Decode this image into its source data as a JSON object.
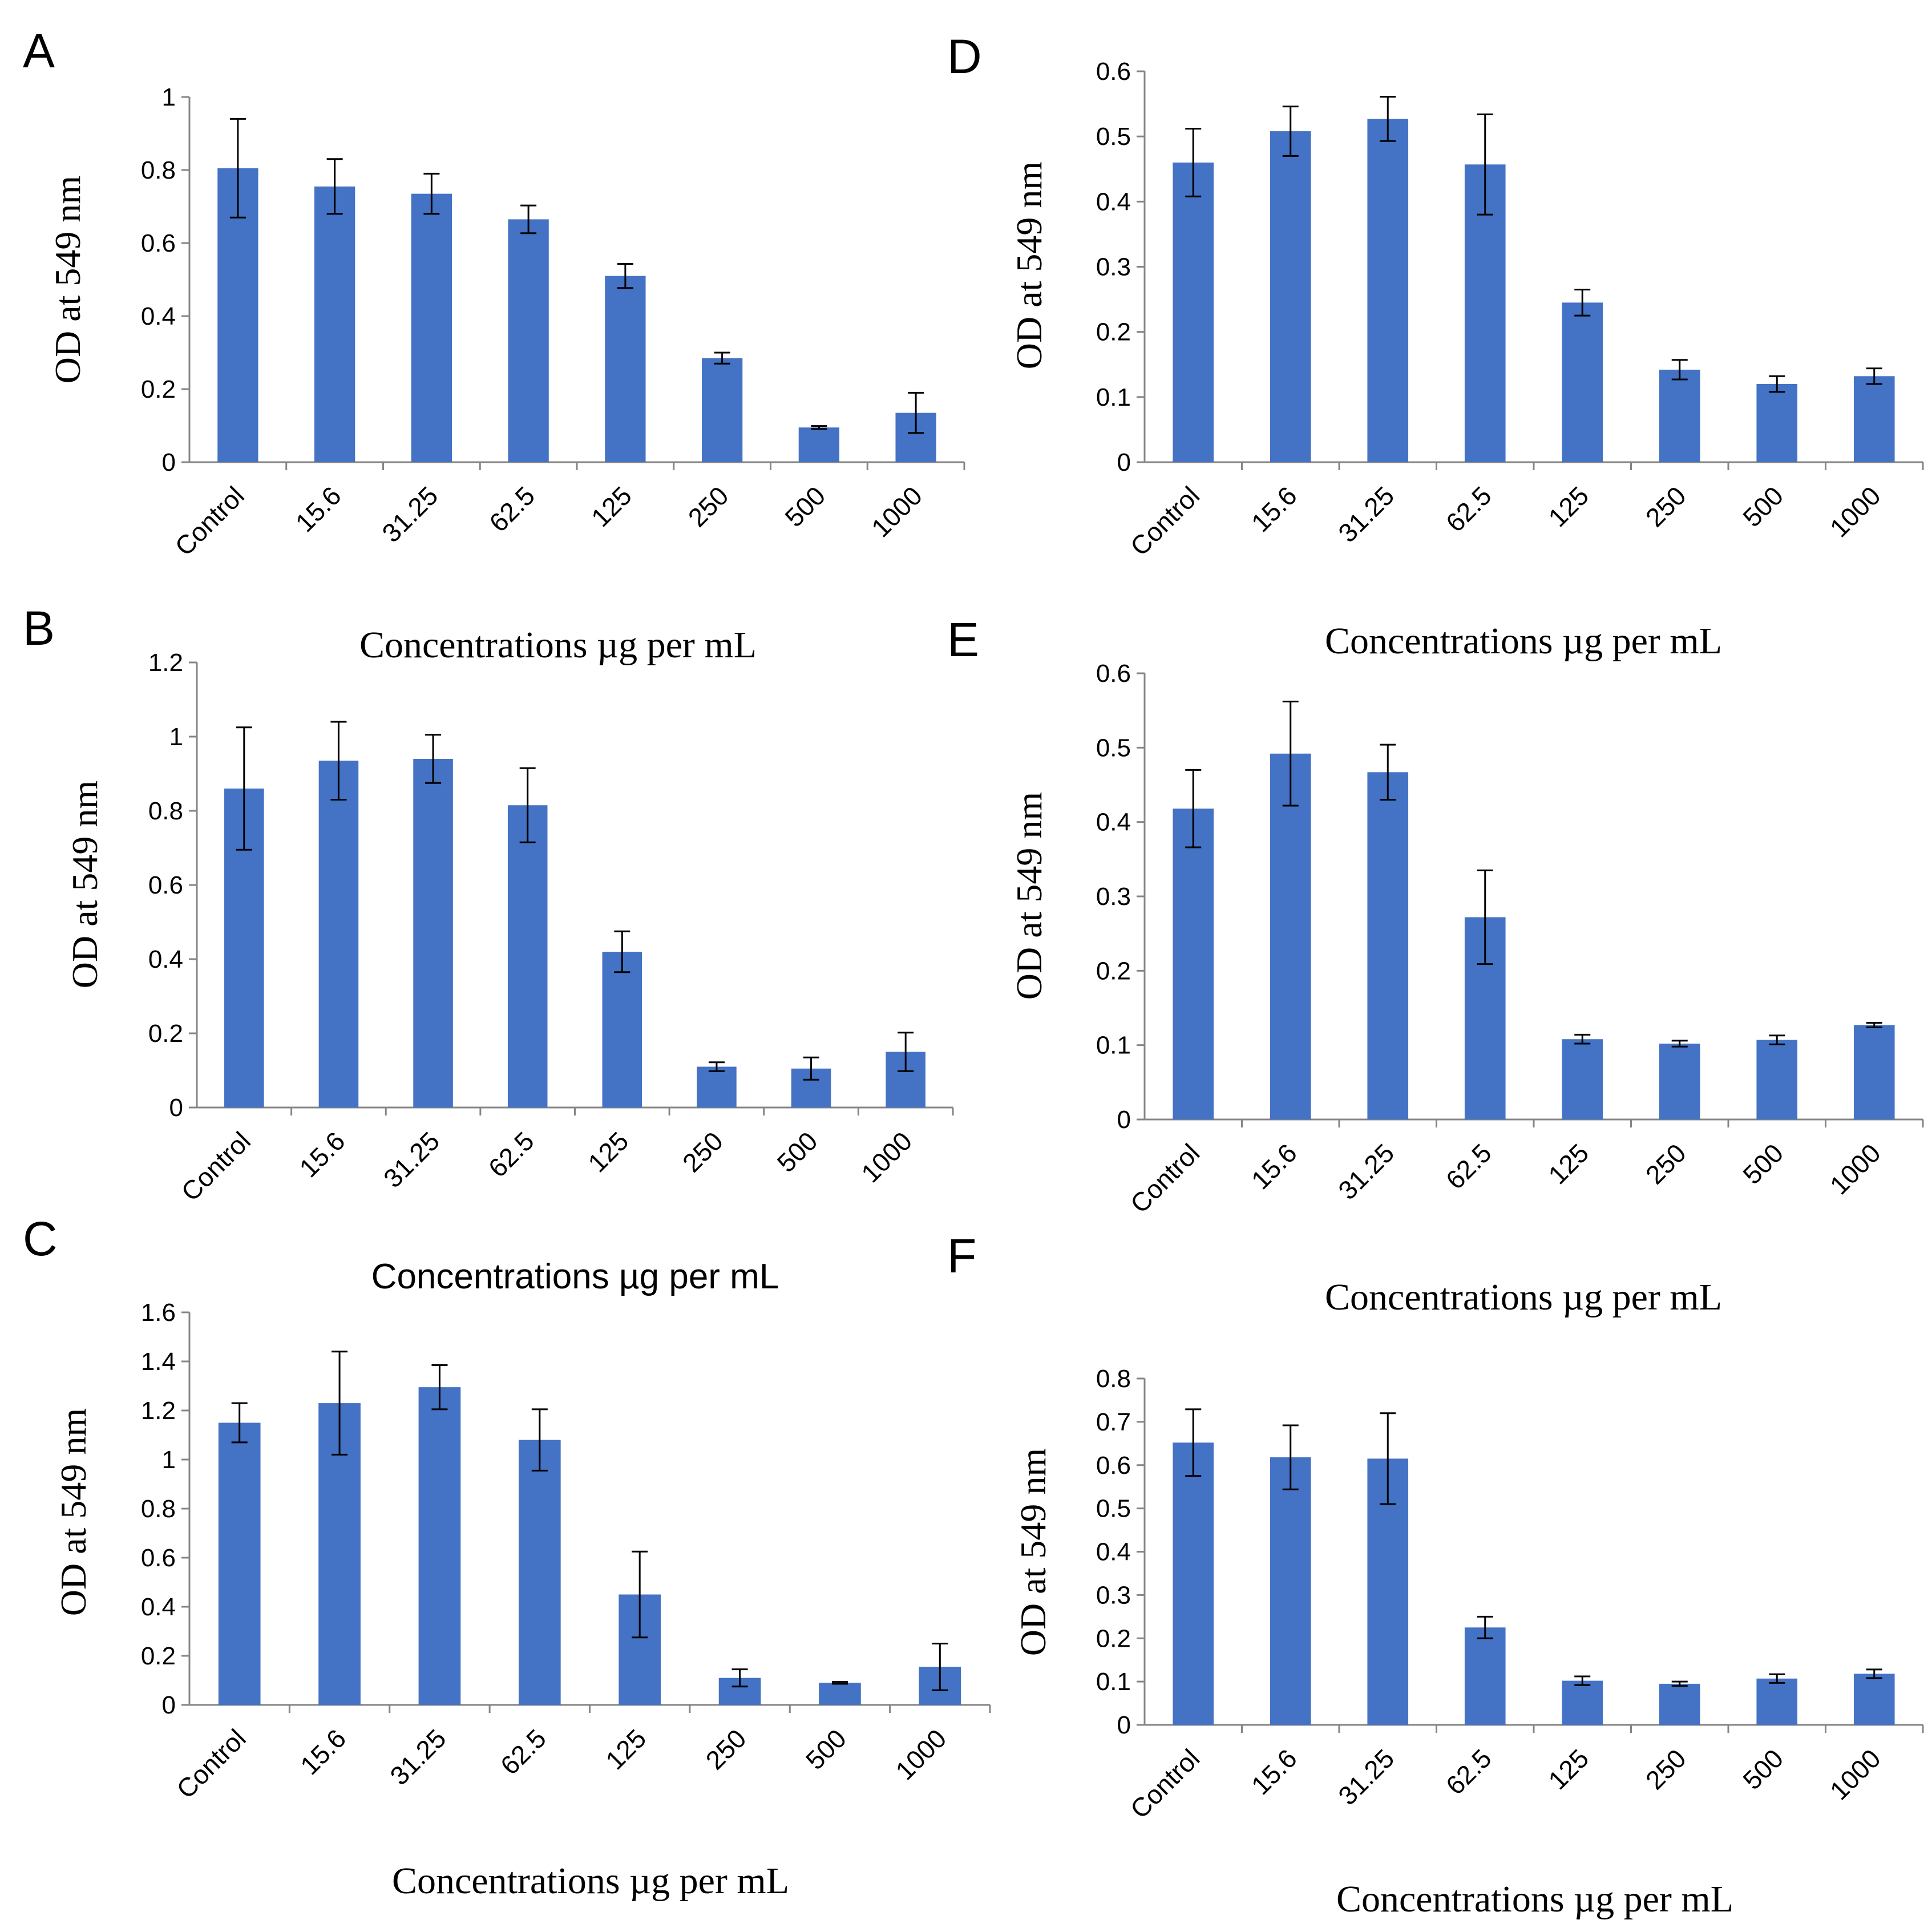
{
  "chart_data": [
    {
      "panel": "A",
      "type": "bar",
      "categories": [
        "Control",
        "15.6",
        "31.25",
        "62.5",
        "125",
        "250",
        "500",
        "1000"
      ],
      "values": [
        0.805,
        0.755,
        0.735,
        0.665,
        0.51,
        0.285,
        0.095,
        0.135
      ],
      "errors": [
        0.135,
        0.075,
        0.055,
        0.038,
        0.033,
        0.015,
        0.004,
        0.055
      ],
      "ylabel": "OD at 549 nm",
      "xlabel": "Concentrations µg per mL",
      "ylim": [
        0,
        1
      ],
      "yticks": [
        "0",
        "0.2",
        "0.4",
        "0.6",
        "0.8",
        "1"
      ],
      "color": "#4472C4"
    },
    {
      "panel": "B",
      "type": "bar",
      "categories": [
        "Control",
        "15.6",
        "31.25",
        "62.5",
        "125",
        "250",
        "500",
        "1000"
      ],
      "values": [
        0.86,
        0.935,
        0.94,
        0.815,
        0.42,
        0.11,
        0.105,
        0.15
      ],
      "errors": [
        0.165,
        0.105,
        0.065,
        0.1,
        0.055,
        0.012,
        0.03,
        0.052
      ],
      "ylabel": "OD at 549 nm",
      "xlabel": "Concentrations µg per mL",
      "ylim": [
        0,
        1.2
      ],
      "yticks": [
        "0",
        "0.2",
        "0.4",
        "0.6",
        "0.8",
        "1",
        "1.2"
      ],
      "color": "#4472C4"
    },
    {
      "panel": "C",
      "type": "bar",
      "categories": [
        "Control",
        "15.6",
        "31.25",
        "62.5",
        "125",
        "250",
        "500",
        "1000"
      ],
      "values": [
        1.15,
        1.23,
        1.295,
        1.08,
        0.45,
        0.11,
        0.09,
        0.155
      ],
      "errors": [
        0.08,
        0.21,
        0.09,
        0.125,
        0.175,
        0.035,
        0.004,
        0.095
      ],
      "ylabel": "OD at 549 nm",
      "xlabel": "Concentrations µg per mL",
      "ylim": [
        0,
        1.6
      ],
      "yticks": [
        "0",
        "0.2",
        "0.4",
        "0.6",
        "0.8",
        "1",
        "1.2",
        "1.4",
        "1.6"
      ],
      "color": "#4472C4"
    },
    {
      "panel": "D",
      "type": "bar",
      "categories": [
        "Control",
        "15.6",
        "31.25",
        "62.5",
        "125",
        "250",
        "500",
        "1000"
      ],
      "values": [
        0.46,
        0.508,
        0.527,
        0.457,
        0.245,
        0.142,
        0.12,
        0.132
      ],
      "errors": [
        0.052,
        0.038,
        0.034,
        0.077,
        0.02,
        0.015,
        0.012,
        0.012
      ],
      "ylabel": "OD at 549 nm",
      "xlabel": "Concentrations µg per mL",
      "ylim": [
        0,
        0.6
      ],
      "yticks": [
        "0",
        "0.1",
        "0.2",
        "0.3",
        "0.4",
        "0.5",
        "0.6"
      ],
      "color": "#4472C4"
    },
    {
      "panel": "E",
      "type": "bar",
      "categories": [
        "Control",
        "15.6",
        "31.25",
        "62.5",
        "125",
        "250",
        "500",
        "1000"
      ],
      "values": [
        0.418,
        0.492,
        0.467,
        0.272,
        0.108,
        0.102,
        0.107,
        0.127
      ],
      "errors": [
        0.052,
        0.07,
        0.037,
        0.063,
        0.006,
        0.004,
        0.006,
        0.003
      ],
      "ylabel": "OD at 549 nm",
      "xlabel": "Concentrations µg per mL",
      "ylim": [
        0,
        0.6
      ],
      "yticks": [
        "0",
        "0.1",
        "0.2",
        "0.3",
        "0.4",
        "0.5",
        "0.6"
      ],
      "color": "#4472C4"
    },
    {
      "panel": "F",
      "type": "bar",
      "categories": [
        "Control",
        "15.6",
        "31.25",
        "62.5",
        "125",
        "250",
        "500",
        "1000"
      ],
      "values": [
        0.652,
        0.618,
        0.615,
        0.225,
        0.102,
        0.095,
        0.107,
        0.118
      ],
      "errors": [
        0.077,
        0.074,
        0.105,
        0.025,
        0.01,
        0.005,
        0.01,
        0.01
      ],
      "ylabel": "OD at 549 nm",
      "xlabel": "Concentrations µg per mL",
      "ylim": [
        0,
        0.8
      ],
      "yticks": [
        "0",
        "0.1",
        "0.2",
        "0.3",
        "0.4",
        "0.5",
        "0.6",
        "0.7",
        "0.8"
      ],
      "color": "#4472C4"
    }
  ]
}
